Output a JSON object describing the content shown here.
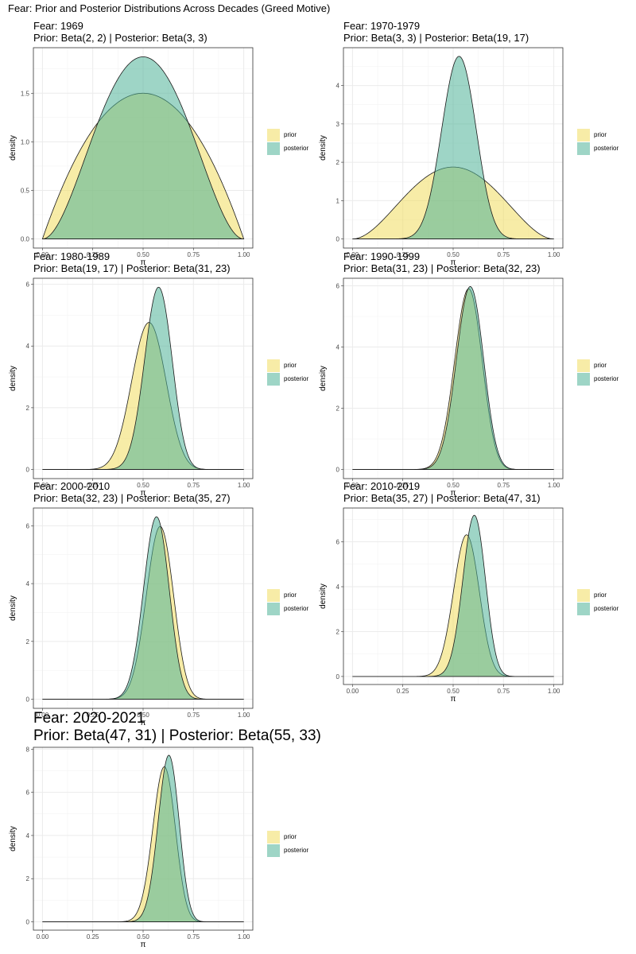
{
  "title": "Fear: Prior and Posterior Distributions Across Decades (Greed Motive)",
  "legend": {
    "items": [
      "prior",
      "posterior"
    ]
  },
  "colors": {
    "prior": "#f1dd5f",
    "posterior": "#4fb397"
  },
  "chart_data": [
    {
      "type": "area",
      "title": "Fear: 1969",
      "subtitle": "Prior: Beta(2, 2) | Posterior: Beta(3, 3)",
      "xlabel": "π",
      "ylabel": "density",
      "xlim": [
        0,
        1
      ],
      "ylim": [
        0,
        1.875
      ],
      "x_ticks": [
        "0.00",
        "0.25",
        "0.50",
        "0.75",
        "1.00"
      ],
      "y_ticks": [
        0,
        0.5,
        1.0,
        1.5
      ],
      "y_tick_labels": [
        "0.0",
        "0.5",
        "1.0",
        "1.5"
      ],
      "series": [
        {
          "name": "prior",
          "distribution": "beta",
          "alpha": 2,
          "beta": 2
        },
        {
          "name": "posterior",
          "distribution": "beta",
          "alpha": 3,
          "beta": 3
        }
      ]
    },
    {
      "type": "area",
      "title": "Fear: 1970-1979",
      "subtitle": "Prior: Beta(3, 3) | Posterior: Beta(19, 17)",
      "xlabel": "π",
      "ylabel": "density",
      "xlim": [
        0,
        1
      ],
      "ylim": [
        0,
        4.75
      ],
      "x_ticks": [
        "0.00",
        "0.25",
        "0.50",
        "0.75",
        "1.00"
      ],
      "y_ticks": [
        0,
        1,
        2,
        3,
        4,
        5
      ],
      "y_tick_labels": [
        "0",
        "1",
        "2",
        "3",
        "4",
        "5"
      ],
      "series": [
        {
          "name": "prior",
          "distribution": "beta",
          "alpha": 3,
          "beta": 3
        },
        {
          "name": "posterior",
          "distribution": "beta",
          "alpha": 19,
          "beta": 17
        }
      ]
    },
    {
      "type": "area",
      "title": "Fear: 1980-1989",
      "subtitle": "Prior: Beta(19, 17) | Posterior: Beta(31, 23)",
      "xlabel": "π",
      "ylabel": "density",
      "xlim": [
        0,
        1
      ],
      "ylim": [
        0,
        5.9
      ],
      "x_ticks": [
        "0.00",
        "0.25",
        "0.50",
        "0.75",
        "1.00"
      ],
      "y_ticks": [
        0,
        2,
        4,
        6
      ],
      "y_tick_labels": [
        "0",
        "2",
        "4",
        "6"
      ],
      "series": [
        {
          "name": "prior",
          "distribution": "beta",
          "alpha": 19,
          "beta": 17
        },
        {
          "name": "posterior",
          "distribution": "beta",
          "alpha": 31,
          "beta": 23
        }
      ]
    },
    {
      "type": "area",
      "title": "Fear: 1990-1999",
      "subtitle": "Prior: Beta(31, 23) | Posterior: Beta(32, 23)",
      "xlabel": "π",
      "ylabel": "density",
      "xlim": [
        0,
        1
      ],
      "ylim": [
        0,
        5.95
      ],
      "x_ticks": [
        "0.00",
        "0.25",
        "0.50",
        "0.75",
        "1.00"
      ],
      "y_ticks": [
        0,
        2,
        4,
        6
      ],
      "y_tick_labels": [
        "0",
        "2",
        "4",
        "6"
      ],
      "series": [
        {
          "name": "prior",
          "distribution": "beta",
          "alpha": 31,
          "beta": 23
        },
        {
          "name": "posterior",
          "distribution": "beta",
          "alpha": 32,
          "beta": 23
        }
      ]
    },
    {
      "type": "area",
      "title": "Fear: 2000-2010",
      "subtitle": "Prior: Beta(32, 23) | Posterior: Beta(35, 27)",
      "xlabel": "π",
      "ylabel": "density",
      "xlim": [
        0,
        1
      ],
      "ylim": [
        0,
        6.3
      ],
      "x_ticks": [
        "0.00",
        "0.25",
        "0.50",
        "0.75",
        "1.00"
      ],
      "y_ticks": [
        0,
        2,
        4,
        6
      ],
      "y_tick_labels": [
        "0",
        "2",
        "4",
        "6"
      ],
      "series": [
        {
          "name": "prior",
          "distribution": "beta",
          "alpha": 32,
          "beta": 23
        },
        {
          "name": "posterior",
          "distribution": "beta",
          "alpha": 35,
          "beta": 27
        }
      ]
    },
    {
      "type": "area",
      "title": "Fear: 2010-2019",
      "subtitle": "Prior: Beta(35, 27) | Posterior: Beta(47, 31)",
      "xlabel": "π",
      "ylabel": "density",
      "xlim": [
        0,
        1
      ],
      "ylim": [
        0,
        7.15
      ],
      "x_ticks": [
        "0.00",
        "0.25",
        "0.50",
        "0.75",
        "1.00"
      ],
      "y_ticks": [
        0,
        2,
        4,
        6
      ],
      "y_tick_labels": [
        "0",
        "2",
        "4",
        "6"
      ],
      "series": [
        {
          "name": "prior",
          "distribution": "beta",
          "alpha": 35,
          "beta": 27
        },
        {
          "name": "posterior",
          "distribution": "beta",
          "alpha": 47,
          "beta": 31
        }
      ]
    },
    {
      "type": "area",
      "title": "Fear: 2020-2021",
      "subtitle": "Prior: Beta(47, 31) | Posterior: Beta(55, 33)",
      "xlabel": "π",
      "ylabel": "density",
      "xlim": [
        0,
        1
      ],
      "ylim": [
        0,
        7.7
      ],
      "x_ticks": [
        "0.00",
        "0.25",
        "0.50",
        "0.75",
        "1.00"
      ],
      "y_ticks": [
        0,
        2,
        4,
        6,
        8
      ],
      "y_tick_labels": [
        "0",
        "2",
        "4",
        "6",
        "8"
      ],
      "series": [
        {
          "name": "prior",
          "distribution": "beta",
          "alpha": 47,
          "beta": 31
        },
        {
          "name": "posterior",
          "distribution": "beta",
          "alpha": 55,
          "beta": 33
        }
      ]
    }
  ]
}
